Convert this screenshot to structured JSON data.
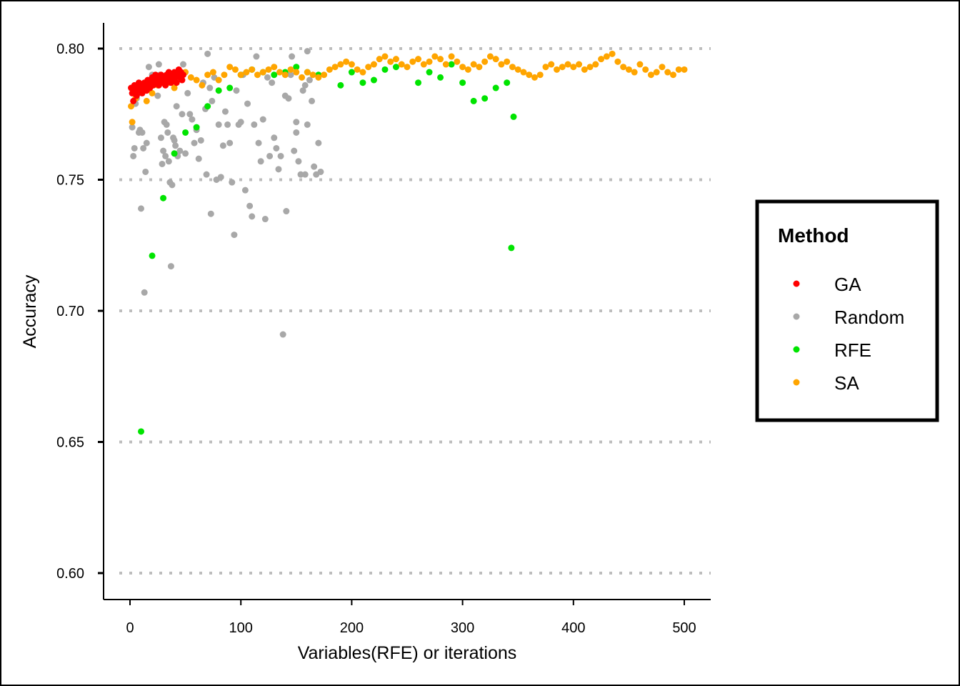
{
  "chart_data": {
    "type": "scatter",
    "title": "",
    "xlabel": "Variables(RFE) or iterations",
    "ylabel": "Accuracy",
    "xlim": [
      -24,
      524
    ],
    "ylim": [
      0.59,
      0.81
    ],
    "x_ticks": [
      0,
      100,
      200,
      300,
      400,
      500
    ],
    "x_tick_labels": [
      "0",
      "100",
      "200",
      "300",
      "400",
      "500"
    ],
    "y_ticks": [
      0.6,
      0.65,
      0.7,
      0.75,
      0.8
    ],
    "y_tick_labels": [
      "0.60",
      "0.65",
      "0.70",
      "0.75",
      "0.80"
    ],
    "grid": "horizontal-dotted",
    "legend": {
      "title": "Method",
      "placement": "right"
    },
    "series": [
      {
        "name": "Random",
        "color": "#A8A8A8",
        "points": [
          [
            2,
            0.77
          ],
          [
            3,
            0.759
          ],
          [
            4,
            0.762
          ],
          [
            5,
            0.779
          ],
          [
            6,
            0.781
          ],
          [
            7,
            0.783
          ],
          [
            8,
            0.768
          ],
          [
            9,
            0.769
          ],
          [
            10,
            0.739
          ],
          [
            11,
            0.768
          ],
          [
            12,
            0.762
          ],
          [
            13,
            0.707
          ],
          [
            14,
            0.753
          ],
          [
            15,
            0.764
          ],
          [
            16,
            0.787
          ],
          [
            17,
            0.793
          ],
          [
            18,
            0.786
          ],
          [
            20,
            0.79
          ],
          [
            22,
            0.787
          ],
          [
            24,
            0.788
          ],
          [
            25,
            0.782
          ],
          [
            26,
            0.794
          ],
          [
            27,
            0.79
          ],
          [
            28,
            0.766
          ],
          [
            29,
            0.756
          ],
          [
            30,
            0.761
          ],
          [
            31,
            0.772
          ],
          [
            32,
            0.759
          ],
          [
            33,
            0.771
          ],
          [
            34,
            0.768
          ],
          [
            35,
            0.757
          ],
          [
            36,
            0.749
          ],
          [
            37,
            0.717
          ],
          [
            38,
            0.748
          ],
          [
            39,
            0.766
          ],
          [
            40,
            0.765
          ],
          [
            41,
            0.763
          ],
          [
            42,
            0.778
          ],
          [
            43,
            0.759
          ],
          [
            45,
            0.761
          ],
          [
            47,
            0.775
          ],
          [
            48,
            0.794
          ],
          [
            50,
            0.76
          ],
          [
            52,
            0.783
          ],
          [
            54,
            0.775
          ],
          [
            56,
            0.773
          ],
          [
            58,
            0.764
          ],
          [
            60,
            0.769
          ],
          [
            62,
            0.758
          ],
          [
            64,
            0.765
          ],
          [
            66,
            0.787
          ],
          [
            68,
            0.777
          ],
          [
            69,
            0.752
          ],
          [
            70,
            0.798
          ],
          [
            72,
            0.785
          ],
          [
            73,
            0.737
          ],
          [
            74,
            0.78
          ],
          [
            76,
            0.789
          ],
          [
            78,
            0.75
          ],
          [
            80,
            0.771
          ],
          [
            82,
            0.751
          ],
          [
            84,
            0.763
          ],
          [
            86,
            0.776
          ],
          [
            88,
            0.771
          ],
          [
            90,
            0.764
          ],
          [
            92,
            0.749
          ],
          [
            94,
            0.729
          ],
          [
            96,
            0.784
          ],
          [
            98,
            0.771
          ],
          [
            100,
            0.772
          ],
          [
            102,
            0.79
          ],
          [
            104,
            0.746
          ],
          [
            106,
            0.779
          ],
          [
            108,
            0.74
          ],
          [
            110,
            0.736
          ],
          [
            112,
            0.771
          ],
          [
            114,
            0.797
          ],
          [
            116,
            0.764
          ],
          [
            118,
            0.757
          ],
          [
            120,
            0.773
          ],
          [
            122,
            0.735
          ],
          [
            124,
            0.789
          ],
          [
            126,
            0.759
          ],
          [
            128,
            0.787
          ],
          [
            130,
            0.766
          ],
          [
            132,
            0.762
          ],
          [
            134,
            0.754
          ],
          [
            136,
            0.759
          ],
          [
            138,
            0.691
          ],
          [
            140,
            0.782
          ],
          [
            141,
            0.738
          ],
          [
            143,
            0.781
          ],
          [
            145,
            0.79
          ],
          [
            146,
            0.797
          ],
          [
            148,
            0.761
          ],
          [
            150,
            0.768
          ],
          [
            152,
            0.757
          ],
          [
            154,
            0.752
          ],
          [
            156,
            0.784
          ],
          [
            158,
            0.752
          ],
          [
            160,
            0.771
          ],
          [
            162,
            0.788
          ],
          [
            164,
            0.78
          ],
          [
            166,
            0.755
          ],
          [
            168,
            0.752
          ],
          [
            170,
            0.764
          ],
          [
            172,
            0.753
          ],
          [
            160,
            0.799
          ],
          [
            158,
            0.786
          ],
          [
            150,
            0.772
          ]
        ]
      },
      {
        "name": "RFE",
        "color": "#00E400",
        "points": [
          [
            10,
            0.654
          ],
          [
            20,
            0.721
          ],
          [
            30,
            0.743
          ],
          [
            40,
            0.76
          ],
          [
            50,
            0.768
          ],
          [
            60,
            0.77
          ],
          [
            70,
            0.778
          ],
          [
            80,
            0.784
          ],
          [
            90,
            0.785
          ],
          [
            100,
            0.79
          ],
          [
            110,
            0.792
          ],
          [
            120,
            0.791
          ],
          [
            130,
            0.79
          ],
          [
            140,
            0.791
          ],
          [
            150,
            0.793
          ],
          [
            160,
            0.791
          ],
          [
            170,
            0.79
          ],
          [
            190,
            0.786
          ],
          [
            200,
            0.791
          ],
          [
            210,
            0.787
          ],
          [
            220,
            0.788
          ],
          [
            230,
            0.792
          ],
          [
            240,
            0.793
          ],
          [
            260,
            0.787
          ],
          [
            270,
            0.791
          ],
          [
            280,
            0.789
          ],
          [
            290,
            0.794
          ],
          [
            300,
            0.787
          ],
          [
            310,
            0.78
          ],
          [
            320,
            0.781
          ],
          [
            330,
            0.785
          ],
          [
            340,
            0.787
          ],
          [
            344,
            0.724
          ],
          [
            346,
            0.774
          ]
        ]
      },
      {
        "name": "SA",
        "color": "#FFA500",
        "points": [
          [
            1,
            0.778
          ],
          [
            2,
            0.772
          ],
          [
            5,
            0.781
          ],
          [
            10,
            0.784
          ],
          [
            15,
            0.78
          ],
          [
            20,
            0.783
          ],
          [
            25,
            0.786
          ],
          [
            30,
            0.788
          ],
          [
            35,
            0.787
          ],
          [
            40,
            0.785
          ],
          [
            45,
            0.789
          ],
          [
            50,
            0.791
          ],
          [
            55,
            0.789
          ],
          [
            60,
            0.788
          ],
          [
            65,
            0.786
          ],
          [
            70,
            0.79
          ],
          [
            75,
            0.791
          ],
          [
            80,
            0.788
          ],
          [
            85,
            0.79
          ],
          [
            90,
            0.793
          ],
          [
            95,
            0.792
          ],
          [
            100,
            0.79
          ],
          [
            105,
            0.791
          ],
          [
            110,
            0.792
          ],
          [
            115,
            0.79
          ],
          [
            120,
            0.791
          ],
          [
            125,
            0.792
          ],
          [
            130,
            0.793
          ],
          [
            135,
            0.791
          ],
          [
            140,
            0.79
          ],
          [
            145,
            0.792
          ],
          [
            150,
            0.791
          ],
          [
            155,
            0.789
          ],
          [
            160,
            0.791
          ],
          [
            165,
            0.79
          ],
          [
            170,
            0.789
          ],
          [
            175,
            0.79
          ],
          [
            180,
            0.792
          ],
          [
            185,
            0.793
          ],
          [
            190,
            0.794
          ],
          [
            195,
            0.795
          ],
          [
            200,
            0.794
          ],
          [
            205,
            0.792
          ],
          [
            210,
            0.791
          ],
          [
            215,
            0.793
          ],
          [
            220,
            0.794
          ],
          [
            225,
            0.796
          ],
          [
            230,
            0.797
          ],
          [
            235,
            0.795
          ],
          [
            240,
            0.796
          ],
          [
            245,
            0.794
          ],
          [
            250,
            0.793
          ],
          [
            255,
            0.795
          ],
          [
            260,
            0.796
          ],
          [
            265,
            0.794
          ],
          [
            270,
            0.795
          ],
          [
            275,
            0.797
          ],
          [
            280,
            0.796
          ],
          [
            285,
            0.794
          ],
          [
            290,
            0.797
          ],
          [
            295,
            0.795
          ],
          [
            300,
            0.793
          ],
          [
            305,
            0.792
          ],
          [
            310,
            0.794
          ],
          [
            315,
            0.793
          ],
          [
            320,
            0.795
          ],
          [
            325,
            0.797
          ],
          [
            330,
            0.796
          ],
          [
            335,
            0.794
          ],
          [
            340,
            0.795
          ],
          [
            345,
            0.793
          ],
          [
            350,
            0.792
          ],
          [
            355,
            0.791
          ],
          [
            360,
            0.79
          ],
          [
            365,
            0.789
          ],
          [
            370,
            0.79
          ],
          [
            375,
            0.793
          ],
          [
            380,
            0.794
          ],
          [
            385,
            0.792
          ],
          [
            390,
            0.793
          ],
          [
            395,
            0.794
          ],
          [
            400,
            0.793
          ],
          [
            405,
            0.794
          ],
          [
            410,
            0.792
          ],
          [
            415,
            0.793
          ],
          [
            420,
            0.794
          ],
          [
            425,
            0.796
          ],
          [
            430,
            0.797
          ],
          [
            435,
            0.798
          ],
          [
            440,
            0.795
          ],
          [
            445,
            0.793
          ],
          [
            450,
            0.792
          ],
          [
            455,
            0.791
          ],
          [
            460,
            0.794
          ],
          [
            465,
            0.792
          ],
          [
            470,
            0.79
          ],
          [
            475,
            0.791
          ],
          [
            480,
            0.793
          ],
          [
            485,
            0.791
          ],
          [
            490,
            0.79
          ],
          [
            495,
            0.792
          ],
          [
            500,
            0.792
          ]
        ]
      },
      {
        "name": "GA",
        "color": "#FF0000",
        "points": [
          [
            1,
            0.785
          ],
          [
            2,
            0.783
          ],
          [
            3,
            0.78
          ],
          [
            4,
            0.786
          ],
          [
            5,
            0.784
          ],
          [
            6,
            0.782
          ],
          [
            7,
            0.785
          ],
          [
            8,
            0.787
          ],
          [
            9,
            0.784
          ],
          [
            10,
            0.786
          ],
          [
            11,
            0.783
          ],
          [
            12,
            0.785
          ],
          [
            13,
            0.787
          ],
          [
            14,
            0.786
          ],
          [
            15,
            0.784
          ],
          [
            16,
            0.788
          ],
          [
            17,
            0.786
          ],
          [
            18,
            0.785
          ],
          [
            19,
            0.787
          ],
          [
            20,
            0.789
          ],
          [
            21,
            0.786
          ],
          [
            22,
            0.788
          ],
          [
            23,
            0.79
          ],
          [
            24,
            0.787
          ],
          [
            25,
            0.789
          ],
          [
            26,
            0.786
          ],
          [
            27,
            0.788
          ],
          [
            28,
            0.79
          ],
          [
            29,
            0.787
          ],
          [
            30,
            0.789
          ],
          [
            31,
            0.788
          ],
          [
            32,
            0.786
          ],
          [
            33,
            0.79
          ],
          [
            34,
            0.788
          ],
          [
            35,
            0.791
          ],
          [
            36,
            0.789
          ],
          [
            37,
            0.787
          ],
          [
            38,
            0.79
          ],
          [
            39,
            0.788
          ],
          [
            40,
            0.791
          ],
          [
            41,
            0.789
          ],
          [
            42,
            0.787
          ],
          [
            43,
            0.79
          ],
          [
            44,
            0.792
          ],
          [
            45,
            0.789
          ],
          [
            46,
            0.791
          ],
          [
            47,
            0.788
          ],
          [
            48,
            0.79
          ]
        ]
      }
    ]
  },
  "legend": {
    "title": "Method",
    "items": [
      {
        "label": "GA",
        "color": "#FF0000"
      },
      {
        "label": "Random",
        "color": "#A8A8A8"
      },
      {
        "label": "RFE",
        "color": "#00E400"
      },
      {
        "label": "SA",
        "color": "#FFA500"
      }
    ]
  }
}
